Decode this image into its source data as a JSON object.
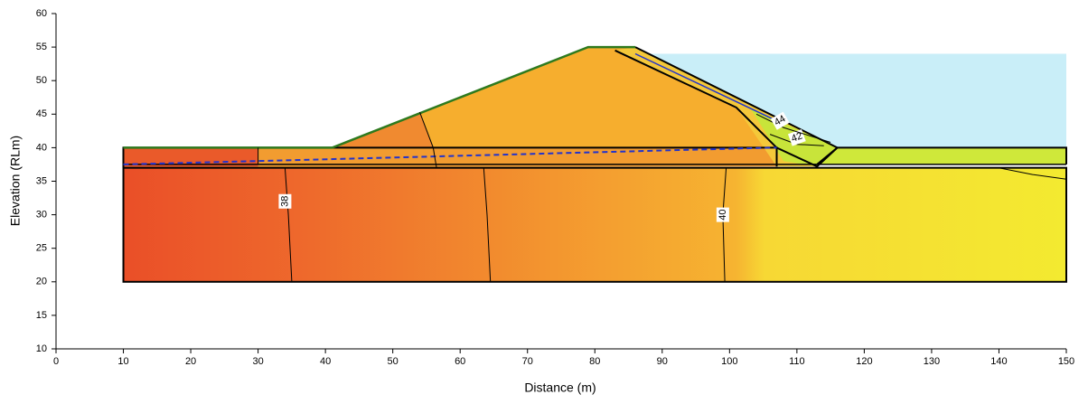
{
  "chart_data": {
    "type": "contour",
    "x_label": "Distance (m)",
    "y_label": "Elevation (RLm)",
    "xlim": [
      0,
      150
    ],
    "ylim": [
      10,
      60
    ],
    "xticks": [
      0,
      10,
      20,
      30,
      40,
      50,
      60,
      70,
      80,
      90,
      100,
      110,
      120,
      130,
      140,
      150
    ],
    "yticks": [
      10,
      15,
      20,
      25,
      30,
      35,
      40,
      45,
      50,
      55,
      60
    ],
    "contour_labels": [
      38,
      40,
      42,
      44
    ]
  }
}
